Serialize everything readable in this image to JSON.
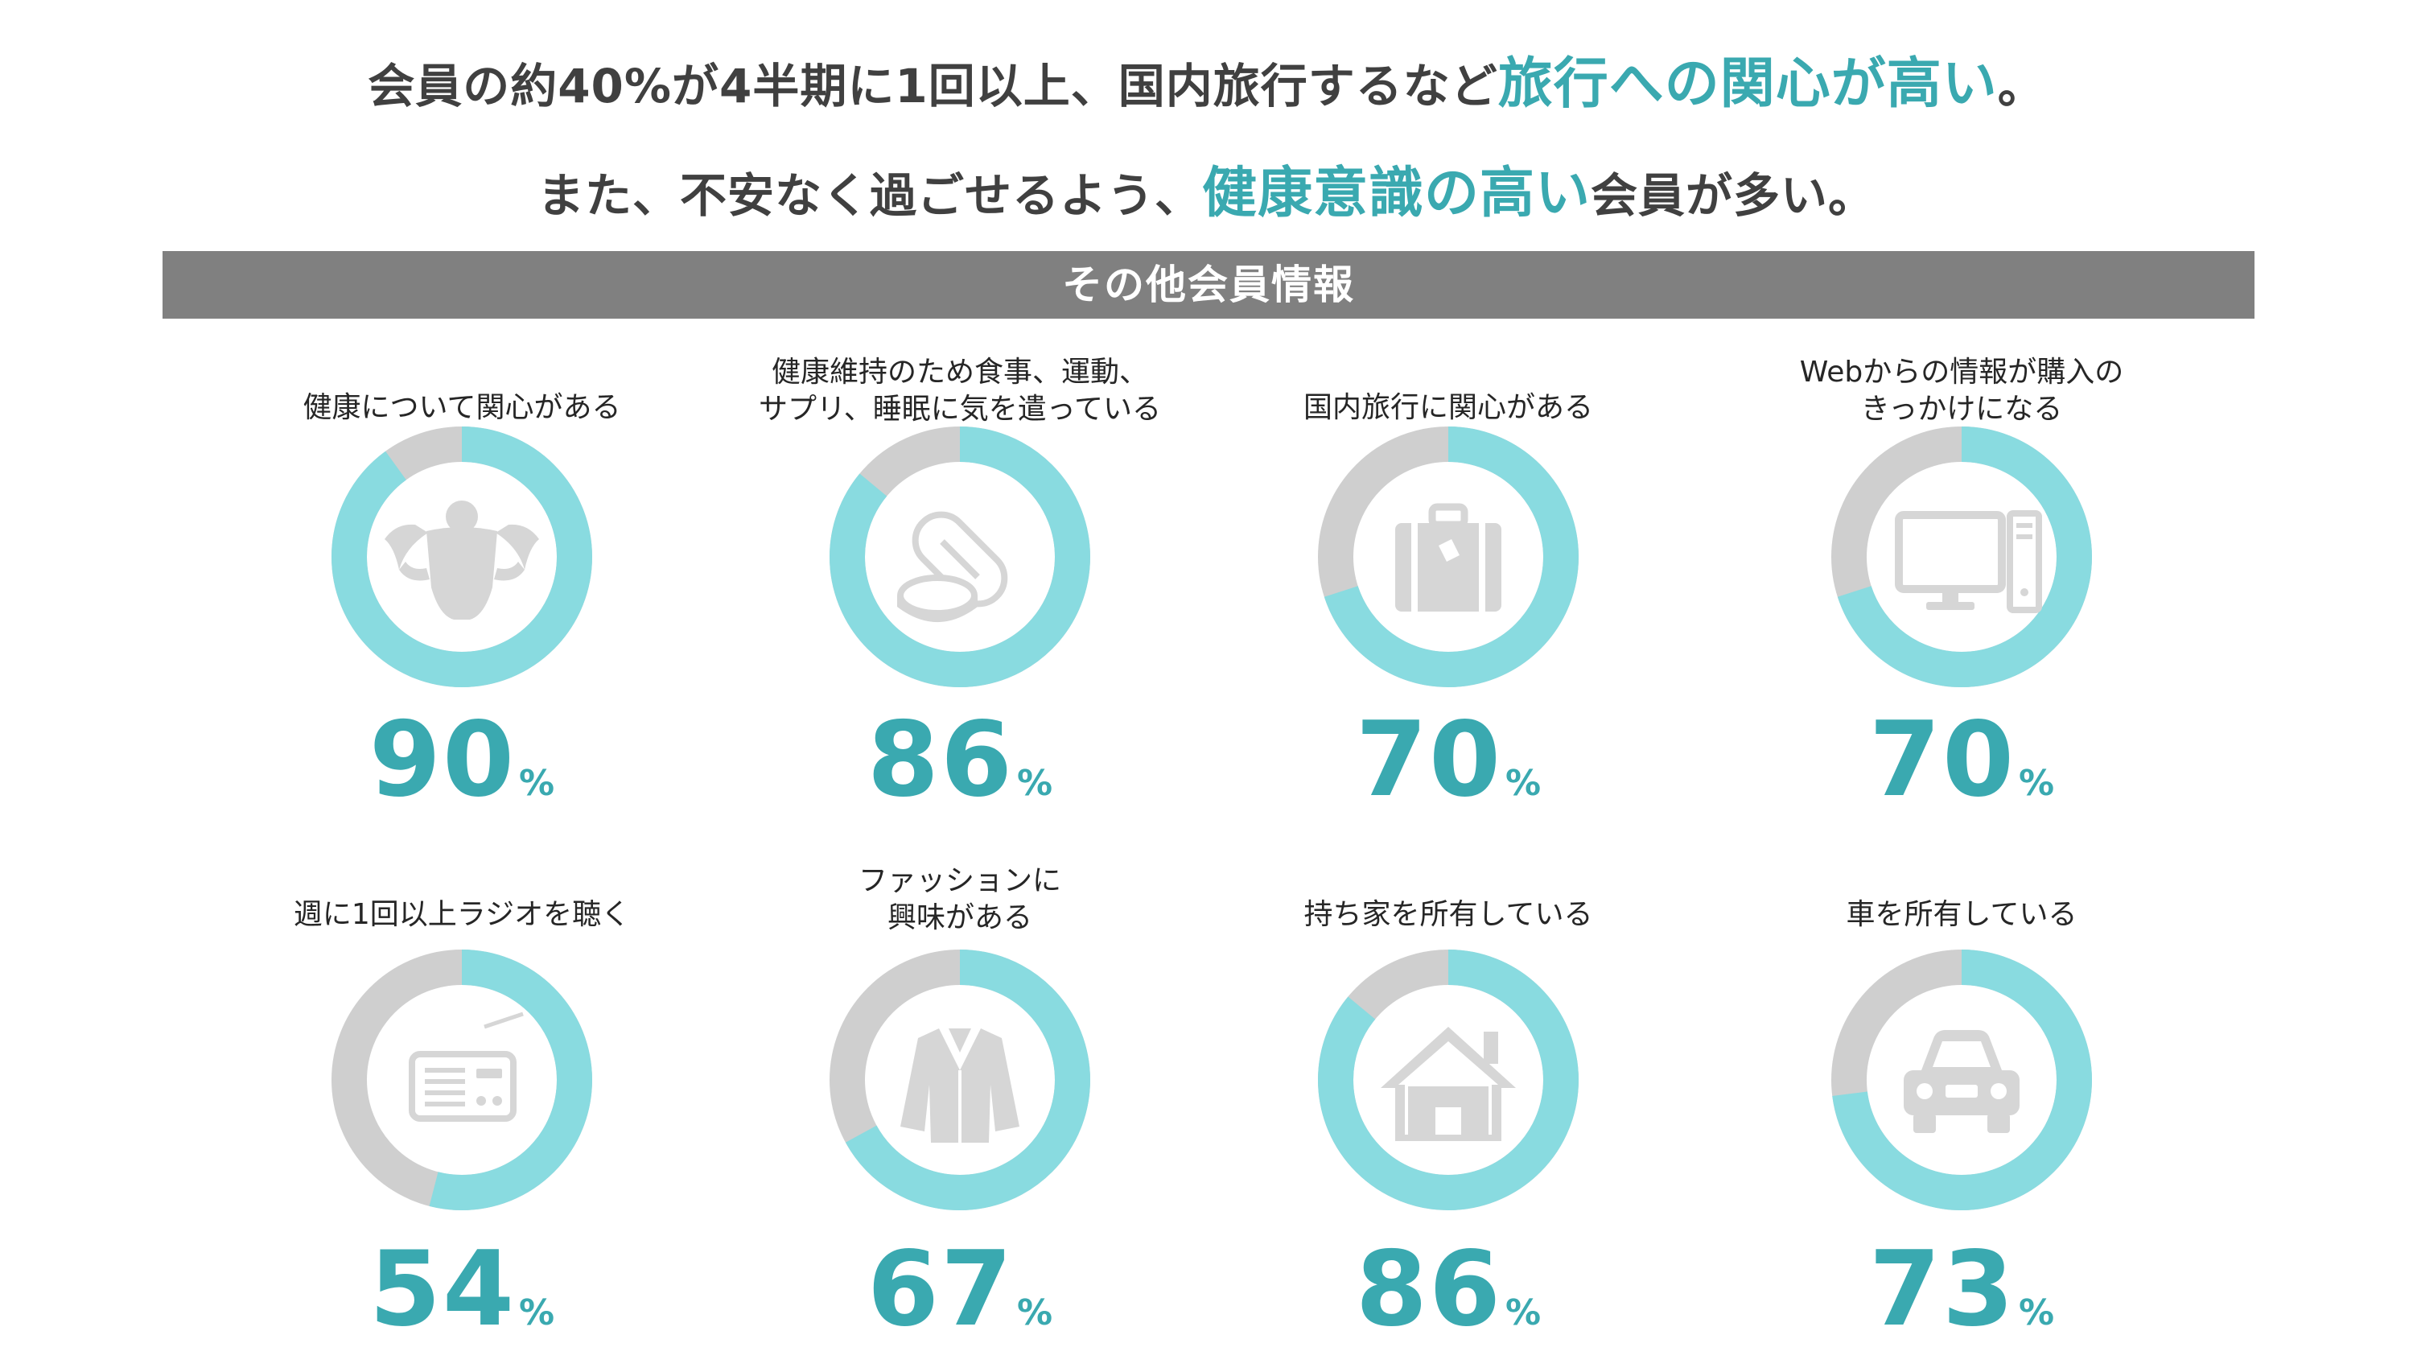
{
  "headline": {
    "line1_prefix": "会員の約40%が4半期に1回以上、国内旅行するなど",
    "line1_highlight": "旅行への関心が高い",
    "line1_suffix": "。",
    "line2_prefix": "また、不安なく過ごせるよう、",
    "line2_highlight": "健康意識の高い",
    "line2_suffix": "会員が多い。"
  },
  "section_title": "その他会員情報",
  "colors": {
    "ring_filled": "#89dbe0",
    "ring_empty": "#cfcfcf",
    "value_text": "#3aa9b0",
    "icon": "#d6d6d6",
    "banner": "#808080"
  },
  "chart_data": {
    "type": "donut",
    "unit": "%",
    "items": [
      {
        "label": "健康について関心がある",
        "value": 90,
        "icon": "bodybuilder-icon"
      },
      {
        "label": "健康維持のため食事、運動、\nサプリ、睡眠に気を遣っている",
        "value": 86,
        "icon": "pills-icon"
      },
      {
        "label": "国内旅行に関心がある",
        "value": 70,
        "icon": "suitcase-icon"
      },
      {
        "label": "Webからの情報が購入の\nきっかけになる",
        "value": 70,
        "icon": "computer-icon"
      },
      {
        "label": "週に1回以上ラジオを聴く",
        "value": 54,
        "icon": "radio-icon"
      },
      {
        "label": "ファッションに\n興味がある",
        "value": 67,
        "icon": "jacket-icon"
      },
      {
        "label": "持ち家を所有している",
        "value": 86,
        "icon": "house-icon"
      },
      {
        "label": "車を所有している",
        "value": 73,
        "icon": "car-icon"
      }
    ]
  }
}
